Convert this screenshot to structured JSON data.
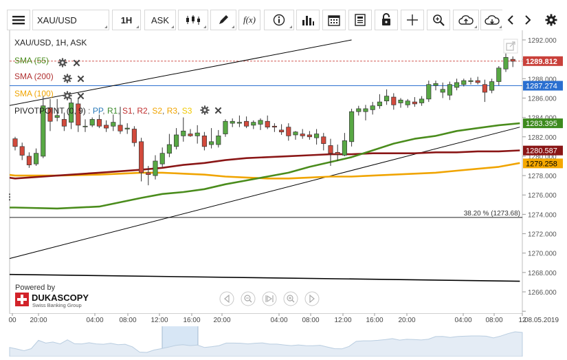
{
  "toolbar": {
    "symbol": "XAU/USD",
    "timeframe": "1H",
    "price_side": "ASK",
    "fx_label": "f(x)"
  },
  "chart_title": "XAU/USD, 1H, ASK",
  "indicators": [
    {
      "label": "SMA (55)",
      "color": "#4a8c1c"
    },
    {
      "label": "SMA (200)",
      "color": "#b03030"
    },
    {
      "label": "SMA (100)",
      "color": "#f0a400"
    }
  ],
  "pivot": {
    "label": "PIVOTPOINT (0, 9)",
    "items": [
      {
        "label": "PP",
        "color": "#2a7ab8"
      },
      {
        "label": "R1",
        "color": "#3a8a2a"
      },
      {
        "label": "S1",
        "color": "#c03030"
      },
      {
        "label": "R2",
        "color": "#c03030"
      },
      {
        "label": "S2",
        "color": "#f0a400"
      },
      {
        "label": "R3",
        "color": "#f0a400"
      },
      {
        "label": "S3",
        "color": "#f0c800"
      }
    ]
  },
  "branding": {
    "powered_by": "Powered by",
    "name": "DUKASCOPY",
    "tagline": "Swiss Banking Group"
  },
  "chart_data": {
    "type": "candlestick",
    "y_axis": {
      "range": [
        1264,
        1293
      ],
      "ticks": [
        "1292.000",
        "1290.000",
        "1288.000",
        "1286.000",
        "1284.000",
        "1282.000",
        "1280.000",
        "1278.000",
        "1276.000",
        "1274.000",
        "1272.000",
        "1270.000",
        "1268.000",
        "1266.000"
      ]
    },
    "x_axis": {
      "tick_labels": [
        "00",
        "20:00",
        "04:00",
        "08:00",
        "12:00",
        "16:00",
        "20:00",
        "04:00",
        "08:00",
        "12:00",
        "16:00",
        "20:00",
        "04:00",
        "08:00",
        "12",
        "08.05.2019"
      ]
    },
    "price_labels": [
      {
        "text": "1289.812",
        "value": 1289.812,
        "bg": "#c9403a",
        "fg": "#ffffff"
      },
      {
        "text": "1287.274",
        "value": 1287.274,
        "bg": "#2a6fd0",
        "fg": "#ffffff"
      },
      {
        "text": "1283.395",
        "value": 1283.395,
        "bg": "#3d8a1e",
        "fg": "#ffffff"
      },
      {
        "text": "1280.587",
        "value": 1280.587,
        "bg": "#8a1616",
        "fg": "#ffffff"
      },
      {
        "text": "1279.258",
        "value": 1279.258,
        "bg": "#f5a800",
        "fg": "#000000"
      }
    ],
    "fib_label": "38.20 % (1273.68)",
    "fib_level": 1273.68,
    "candles": [
      [
        1281.8,
        1282.0,
        1280.6,
        1281.0
      ],
      [
        1281.0,
        1281.4,
        1279.6,
        1280.1
      ],
      [
        1280.0,
        1280.4,
        1278.8,
        1279.1
      ],
      [
        1279.2,
        1280.8,
        1279.0,
        1280.3
      ],
      [
        1280.0,
        1286.2,
        1279.8,
        1285.2
      ],
      [
        1285.0,
        1285.9,
        1282.6,
        1283.6
      ],
      [
        1284.0,
        1285.9,
        1283.6,
        1284.2
      ],
      [
        1283.8,
        1284.5,
        1282.6,
        1283.1
      ],
      [
        1283.5,
        1286.0,
        1282.8,
        1285.5
      ],
      [
        1285.4,
        1286.0,
        1282.5,
        1283.2
      ],
      [
        1283.1,
        1283.8,
        1282.5,
        1283.1
      ],
      [
        1283.2,
        1284.0,
        1283.0,
        1283.8
      ],
      [
        1283.8,
        1284.3,
        1282.9,
        1283.1
      ],
      [
        1283.2,
        1283.7,
        1282.5,
        1282.9
      ],
      [
        1283.1,
        1284.3,
        1282.6,
        1283.5
      ],
      [
        1283.2,
        1285.1,
        1282.3,
        1282.6
      ],
      [
        1282.8,
        1283.4,
        1282.3,
        1282.9
      ],
      [
        1282.8,
        1283.1,
        1281.0,
        1281.4
      ],
      [
        1281.5,
        1281.9,
        1277.4,
        1278.3
      ],
      [
        1278.3,
        1279.0,
        1277.0,
        1278.1
      ],
      [
        1278.0,
        1280.1,
        1277.6,
        1279.5
      ],
      [
        1279.2,
        1280.9,
        1278.9,
        1280.3
      ],
      [
        1280.3,
        1282.3,
        1279.9,
        1281.2
      ],
      [
        1281.0,
        1282.9,
        1280.7,
        1282.2
      ],
      [
        1282.1,
        1284.0,
        1281.5,
        1282.6
      ],
      [
        1282.3,
        1282.8,
        1282.0,
        1282.1
      ],
      [
        1282.1,
        1283.2,
        1281.3,
        1282.4
      ],
      [
        1282.1,
        1282.5,
        1280.6,
        1281.0
      ],
      [
        1281.2,
        1282.9,
        1280.8,
        1281.5
      ],
      [
        1281.2,
        1282.7,
        1280.9,
        1282.1
      ],
      [
        1282.3,
        1283.8,
        1282.0,
        1283.6
      ],
      [
        1283.4,
        1283.9,
        1283.0,
        1283.6
      ],
      [
        1283.4,
        1284.2,
        1283.0,
        1283.5
      ],
      [
        1283.6,
        1284.1,
        1282.9,
        1283.1
      ],
      [
        1283.2,
        1283.7,
        1282.8,
        1283.5
      ],
      [
        1283.3,
        1283.9,
        1282.7,
        1283.7
      ],
      [
        1283.6,
        1284.2,
        1282.8,
        1283.0
      ],
      [
        1283.1,
        1283.4,
        1282.5,
        1283.0
      ],
      [
        1282.7,
        1283.3,
        1282.2,
        1282.5
      ],
      [
        1283.0,
        1283.4,
        1281.6,
        1282.1
      ],
      [
        1282.2,
        1282.6,
        1281.7,
        1282.5
      ],
      [
        1282.3,
        1282.8,
        1281.8,
        1282.1
      ],
      [
        1282.2,
        1282.6,
        1281.7,
        1282.0
      ],
      [
        1281.9,
        1282.8,
        1281.2,
        1282.3
      ],
      [
        1282.0,
        1282.4,
        1280.6,
        1281.3
      ],
      [
        1281.1,
        1281.8,
        1279.0,
        1280.3
      ],
      [
        1280.4,
        1281.2,
        1279.5,
        1280.2
      ],
      [
        1280.1,
        1282.4,
        1280.0,
        1281.6
      ],
      [
        1281.5,
        1284.9,
        1281.0,
        1284.6
      ],
      [
        1284.6,
        1285.2,
        1284.2,
        1284.9
      ],
      [
        1284.6,
        1285.3,
        1283.7,
        1284.9
      ],
      [
        1284.8,
        1285.6,
        1284.3,
        1285.2
      ],
      [
        1285.2,
        1286.4,
        1284.9,
        1285.6
      ],
      [
        1285.7,
        1286.9,
        1285.3,
        1286.2
      ],
      [
        1286.1,
        1286.5,
        1284.8,
        1285.3
      ],
      [
        1285.5,
        1286.0,
        1285.0,
        1285.8
      ],
      [
        1285.3,
        1285.9,
        1285.0,
        1285.7
      ],
      [
        1285.6,
        1286.1,
        1285.1,
        1285.4
      ],
      [
        1285.5,
        1286.2,
        1285.2,
        1285.9
      ],
      [
        1285.9,
        1287.8,
        1285.6,
        1287.4
      ],
      [
        1287.3,
        1287.8,
        1286.8,
        1287.5
      ],
      [
        1286.6,
        1287.6,
        1286.0,
        1286.9
      ],
      [
        1286.3,
        1287.7,
        1285.8,
        1287.4
      ],
      [
        1287.1,
        1288.0,
        1286.8,
        1287.6
      ],
      [
        1287.4,
        1288.0,
        1287.2,
        1287.8
      ],
      [
        1287.7,
        1288.1,
        1287.4,
        1287.8
      ],
      [
        1287.8,
        1288.2,
        1287.4,
        1287.6
      ],
      [
        1287.4,
        1287.9,
        1285.6,
        1286.6
      ],
      [
        1286.8,
        1288.0,
        1286.5,
        1287.7
      ],
      [
        1287.7,
        1289.3,
        1287.3,
        1289.1
      ],
      [
        1289.0,
        1290.6,
        1288.7,
        1290.2
      ],
      [
        1290.0,
        1290.3,
        1289.2,
        1289.8
      ]
    ],
    "sma55": [
      [
        -1,
        1274.7
      ],
      [
        0,
        1274.7
      ],
      [
        6,
        1274.6
      ],
      [
        12,
        1274.8
      ],
      [
        18,
        1275.7
      ],
      [
        21,
        1276.1
      ],
      [
        24,
        1276.3
      ],
      [
        27,
        1276.6
      ],
      [
        30,
        1277.1
      ],
      [
        33,
        1277.5
      ],
      [
        36,
        1277.9
      ],
      [
        39,
        1278.3
      ],
      [
        42,
        1278.9
      ],
      [
        45,
        1279.4
      ],
      [
        48,
        1279.9
      ],
      [
        51,
        1280.6
      ],
      [
        54,
        1281.3
      ],
      [
        57,
        1281.8
      ],
      [
        60,
        1282.1
      ],
      [
        63,
        1282.6
      ],
      [
        66,
        1282.9
      ],
      [
        69,
        1283.2
      ],
      [
        72,
        1283.4
      ]
    ],
    "sma200": [
      [
        -1,
        1277.8
      ],
      [
        0,
        1277.7
      ],
      [
        6,
        1278.0
      ],
      [
        12,
        1278.3
      ],
      [
        18,
        1278.6
      ],
      [
        21,
        1278.8
      ],
      [
        24,
        1279.1
      ],
      [
        27,
        1279.3
      ],
      [
        30,
        1279.6
      ],
      [
        33,
        1279.8
      ],
      [
        36,
        1279.9
      ],
      [
        39,
        1280.0
      ],
      [
        42,
        1280.1
      ],
      [
        45,
        1280.2
      ],
      [
        48,
        1280.2
      ],
      [
        51,
        1280.3
      ],
      [
        54,
        1280.3
      ],
      [
        57,
        1280.3
      ],
      [
        60,
        1280.4
      ],
      [
        63,
        1280.4
      ],
      [
        66,
        1280.5
      ],
      [
        69,
        1280.5
      ],
      [
        72,
        1280.6
      ]
    ],
    "sma100": [
      [
        -1,
        1278.1
      ],
      [
        0,
        1278.0
      ],
      [
        6,
        1278.0
      ],
      [
        12,
        1278.1
      ],
      [
        18,
        1278.3
      ],
      [
        21,
        1278.3
      ],
      [
        24,
        1278.2
      ],
      [
        27,
        1278.1
      ],
      [
        30,
        1277.9
      ],
      [
        33,
        1277.8
      ],
      [
        36,
        1277.7
      ],
      [
        39,
        1277.7
      ],
      [
        42,
        1277.8
      ],
      [
        45,
        1277.9
      ],
      [
        48,
        1277.9
      ],
      [
        51,
        1278.0
      ],
      [
        54,
        1278.1
      ],
      [
        57,
        1278.2
      ],
      [
        60,
        1278.3
      ],
      [
        63,
        1278.5
      ],
      [
        66,
        1278.7
      ],
      [
        69,
        1278.9
      ],
      [
        72,
        1279.3
      ]
    ],
    "trendlines": [
      {
        "points": [
          [
            -1,
            1285.2
          ],
          [
            48,
            1292.0
          ]
        ],
        "color": "#000000"
      },
      {
        "points": [
          [
            -1,
            1269.4
          ],
          [
            72,
            1283.0
          ]
        ],
        "color": "#000000"
      },
      {
        "points": [
          [
            -1,
            1267.8
          ],
          [
            72,
            1267.1
          ]
        ],
        "color": "#000000"
      }
    ],
    "last_price": 1289.812,
    "pivot_pp": 1287.274
  }
}
